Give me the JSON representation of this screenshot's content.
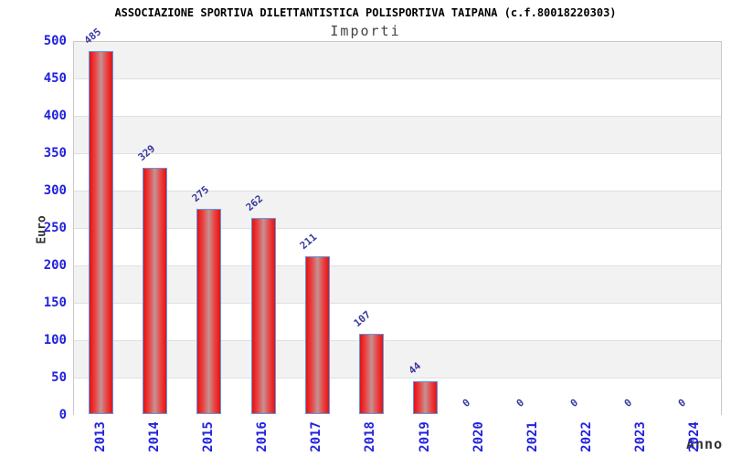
{
  "chart_data": {
    "type": "bar",
    "title": "ASSOCIAZIONE SPORTIVA DILETTANTISTICA POLISPORTIVA TAIPANA (c.f.80018220303)",
    "subtitle": "Importi",
    "xlabel": "Anno",
    "ylabel": "Euro",
    "categories": [
      "2013",
      "2014",
      "2015",
      "2016",
      "2017",
      "2018",
      "2019",
      "2020",
      "2021",
      "2022",
      "2023",
      "2024"
    ],
    "values": [
      485,
      329,
      275,
      262,
      211,
      107,
      44,
      0,
      0,
      0,
      0,
      0
    ],
    "bar_value_labels": [
      "485",
      "329",
      "275",
      "262",
      "211",
      "107",
      "44",
      "0",
      "0",
      "0",
      "0",
      "0"
    ],
    "ylim": [
      0,
      500
    ],
    "ytick_step": 50,
    "yticks": [
      500,
      450,
      400,
      350,
      300,
      250,
      200,
      150,
      100,
      50,
      0
    ],
    "grid": "horizontal-bands",
    "legend_position": "none",
    "colors": {
      "bar_fill_edge": "#e41212",
      "bar_fill_center": "#c49292",
      "bar_border": "#5a9ae1",
      "tick_label": "#2222dd",
      "value_label": "#3a3aa0",
      "band_gray": "#f2f2f2",
      "band_white": "#ffffff",
      "grid_line": "#e0e0e0",
      "plot_border": "#c8c8c8",
      "title_color": "#000000",
      "subtitle_color": "#444444",
      "axis_title_color": "#333333",
      "background": "#ffffff"
    }
  }
}
